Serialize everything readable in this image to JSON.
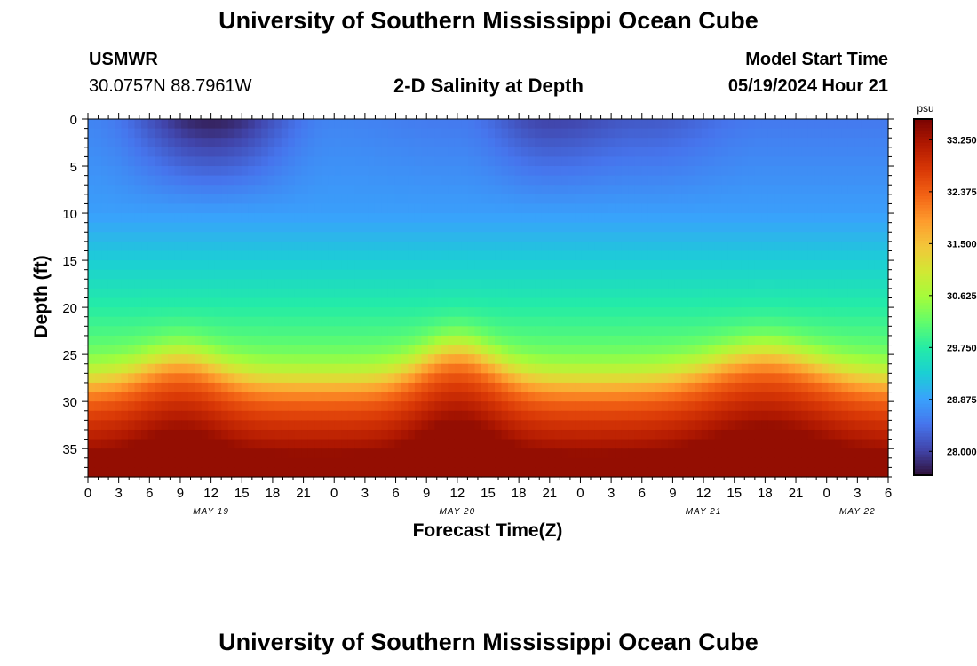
{
  "header": {
    "title": "University of Southern Mississippi Ocean Cube",
    "station": "USMWR",
    "coordinates": "30.0757N  88.7961W",
    "subtitle": "2-D Salinity at Depth",
    "model_start_label": "Model Start Time",
    "model_start_value": "05/19/2024 Hour 21",
    "footer_title": "University of Southern Mississippi Ocean Cube"
  },
  "chart_data": {
    "type": "heatmap",
    "title": "2-D Salinity at Depth",
    "xlabel": "Forecast Time(Z)",
    "ylabel": "Depth (ft)",
    "y_ticks": [
      0,
      5,
      10,
      15,
      20,
      25,
      30,
      35
    ],
    "ylim": [
      0,
      38
    ],
    "x_hours_range": [
      0,
      78
    ],
    "x_tick_labels": [
      "0",
      "3",
      "6",
      "9",
      "12",
      "15",
      "18",
      "21",
      "0",
      "3",
      "6",
      "9",
      "12",
      "15",
      "18",
      "21",
      "0",
      "3",
      "6",
      "9",
      "12",
      "15",
      "18",
      "21",
      "0",
      "3",
      "6"
    ],
    "date_labels": [
      {
        "text": "MAY 19",
        "hour": 12
      },
      {
        "text": "MAY 20",
        "hour": 36
      },
      {
        "text": "MAY 21",
        "hour": 60
      },
      {
        "text": "MAY 22",
        "hour": 75
      }
    ],
    "colorbar": {
      "unit": "psu",
      "min": 27.6,
      "max": 33.6,
      "ticks": [
        "33.250",
        "32.375",
        "31.500",
        "30.625",
        "29.750",
        "28.875",
        "28.000"
      ],
      "colors": [
        "#30123b",
        "#4145ab",
        "#4675ed",
        "#39a2fc",
        "#1bcfd4",
        "#24eca6",
        "#61fc6c",
        "#a4fc3b",
        "#d1e834",
        "#f3c63a",
        "#fe9b2d",
        "#f36315",
        "#d93806",
        "#b11901",
        "#7a0402"
      ]
    },
    "surface_salinity": [
      {
        "hour": 0,
        "value": 28.6
      },
      {
        "hour": 12,
        "value": 27.7
      },
      {
        "hour": 24,
        "value": 28.6
      },
      {
        "hour": 36,
        "value": 28.5
      },
      {
        "hour": 45,
        "value": 28.0
      },
      {
        "hour": 54,
        "value": 28.2
      },
      {
        "hour": 66,
        "value": 28.5
      },
      {
        "hour": 78,
        "value": 28.5
      }
    ],
    "bottom_salinity": 33.4
  }
}
